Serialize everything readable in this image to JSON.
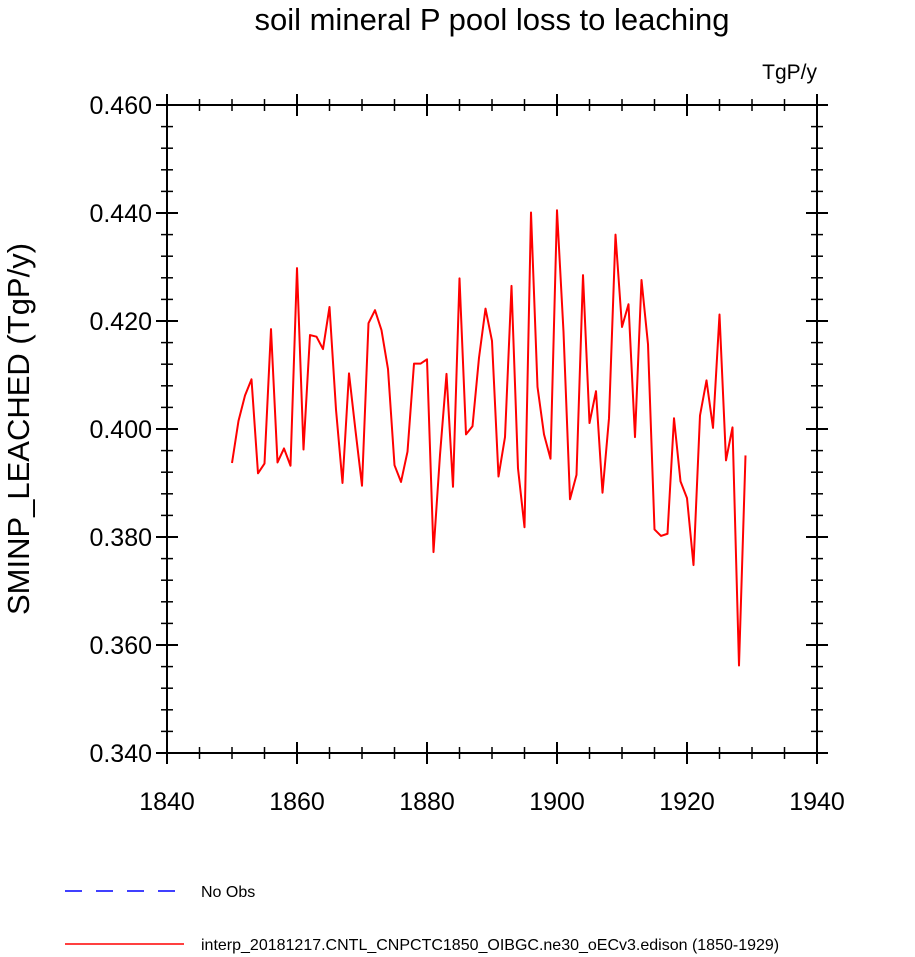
{
  "chart_data": {
    "type": "line",
    "title": "soil mineral P pool loss to leaching",
    "units": "TgP/y",
    "ylabel": "SMINP_LEACHED  (TgP/y)",
    "xlabel": "",
    "xlim": [
      1840,
      1940
    ],
    "ylim": [
      0.34,
      0.46
    ],
    "xticks": [
      1840,
      1860,
      1880,
      1900,
      1920,
      1940
    ],
    "xtick_labels": [
      "1840",
      "1860",
      "1880",
      "1900",
      "1920",
      "1940"
    ],
    "yticks": [
      0.34,
      0.36,
      0.38,
      0.4,
      0.42,
      0.44,
      0.46
    ],
    "ytick_labels": [
      "0.340",
      "0.360",
      "0.380",
      "0.400",
      "0.420",
      "0.440",
      "0.460"
    ],
    "grid": false,
    "legend_position": "bottom-left",
    "series": [
      {
        "name": "interp_20181217.CNTL_CNPCTC1850_OIBGC.ne30_oECv3.edison (1850-1929)",
        "color": "#ff0000",
        "dash": "solid",
        "x": [
          1850,
          1851,
          1852,
          1853,
          1854,
          1855,
          1856,
          1857,
          1858,
          1859,
          1860,
          1861,
          1862,
          1863,
          1864,
          1865,
          1866,
          1867,
          1868,
          1869,
          1870,
          1871,
          1872,
          1873,
          1874,
          1875,
          1876,
          1877,
          1878,
          1879,
          1880,
          1881,
          1882,
          1883,
          1884,
          1885,
          1886,
          1887,
          1888,
          1889,
          1890,
          1891,
          1892,
          1893,
          1894,
          1895,
          1896,
          1897,
          1898,
          1899,
          1900,
          1901,
          1902,
          1903,
          1904,
          1905,
          1906,
          1907,
          1908,
          1909,
          1910,
          1911,
          1912,
          1913,
          1914,
          1915,
          1916,
          1917,
          1918,
          1919,
          1920,
          1921,
          1922,
          1923,
          1924,
          1925,
          1926,
          1927,
          1928,
          1929
        ],
        "values": [
          0.3937,
          0.4015,
          0.4062,
          0.4092,
          0.3918,
          0.3936,
          0.4185,
          0.3938,
          0.3964,
          0.3932,
          0.4298,
          0.3962,
          0.4174,
          0.4171,
          0.4148,
          0.4226,
          0.4036,
          0.39,
          0.4103,
          0.3997,
          0.3895,
          0.4196,
          0.422,
          0.4183,
          0.4111,
          0.3933,
          0.3902,
          0.3958,
          0.4121,
          0.4121,
          0.4129,
          0.3772,
          0.3952,
          0.4102,
          0.3893,
          0.4279,
          0.399,
          0.4005,
          0.4132,
          0.4223,
          0.4163,
          0.3912,
          0.3985,
          0.4265,
          0.3927,
          0.3818,
          0.4401,
          0.4078,
          0.399,
          0.3945,
          0.4405,
          0.418,
          0.387,
          0.3915,
          0.4285,
          0.4011,
          0.407,
          0.3882,
          0.402,
          0.436,
          0.4189,
          0.4231,
          0.3985,
          0.4276,
          0.4157,
          0.3814,
          0.3802,
          0.3806,
          0.402,
          0.3903,
          0.3872,
          0.3748,
          0.4025,
          0.409,
          0.4002,
          0.4212,
          0.3942,
          0.4003,
          0.3562,
          0.3951
        ]
      },
      {
        "name": "No Obs",
        "color": "#0000ff",
        "dash": "dashed",
        "x": [],
        "values": []
      }
    ]
  }
}
